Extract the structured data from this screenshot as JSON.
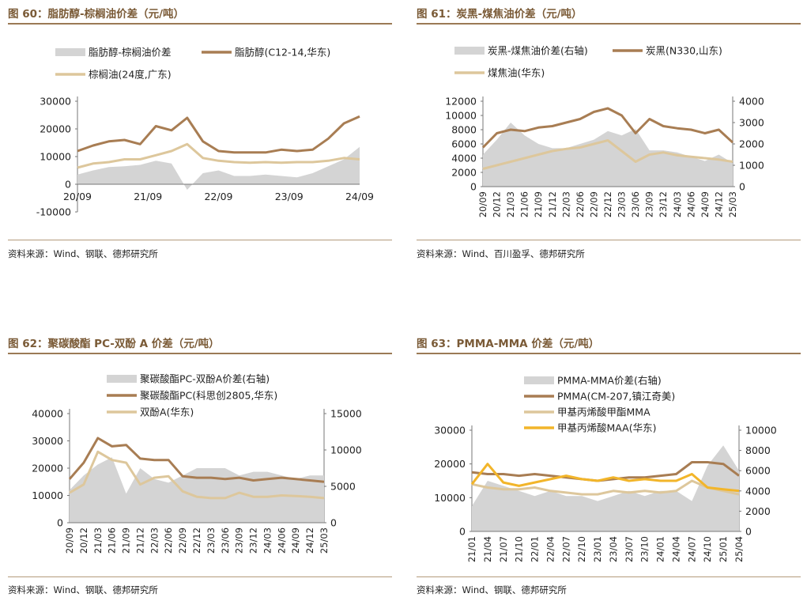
{
  "panels": [
    {
      "title": "图 60：脂肪醇-棕榈油价差（元/吨）",
      "source": "资料来源：Wind、钢联、德邦研究所"
    },
    {
      "title": "图 61：炭黑-煤焦油价差（元/吨）",
      "source": "资料来源：Wind、百川盈孚、德邦研究所"
    },
    {
      "title": "图 62：聚碳酸酯 PC-双酚 A 价差（元/吨）",
      "source": "资料来源：Wind、钢联、德邦研究所"
    },
    {
      "title": "图 63：PMMA-MMA 价差（元/吨）",
      "source": "资料来源：Wind、钢联、德邦研究所"
    }
  ],
  "colors": {
    "spread": "#d4d4d4",
    "product": "#a87d53",
    "feedstock": "#ddc79c",
    "maa": "#f2b52a"
  },
  "chart_data": [
    {
      "type": "line",
      "title": "",
      "xlabel": "",
      "ylabel": "",
      "ylim": [
        -10000,
        30000
      ],
      "yticks": [
        -10000,
        0,
        10000,
        20000,
        30000
      ],
      "tick_labels": [
        "20/09",
        "21/09",
        "22/09",
        "23/09",
        "24/09"
      ],
      "x": [
        "20/09",
        "20/12",
        "21/03",
        "21/06",
        "21/09",
        "21/12",
        "22/03",
        "22/06",
        "22/09",
        "22/12",
        "23/03",
        "23/06",
        "23/09",
        "23/12",
        "24/03",
        "24/06",
        "24/09",
        "24/12",
        "25/03"
      ],
      "legend": "top",
      "series": [
        {
          "name": "脂肪醇-棕榈油价差",
          "type": "area",
          "axis": "left",
          "values": [
            3500,
            5000,
            6200,
            6500,
            7000,
            8500,
            7500,
            -2000,
            4000,
            5000,
            3000,
            3000,
            3500,
            3000,
            2500,
            4000,
            6500,
            9000,
            13500
          ]
        },
        {
          "name": "脂肪醇(C12-14,华东)",
          "type": "line",
          "axis": "left",
          "values": [
            12000,
            14000,
            15500,
            16000,
            14500,
            21000,
            19500,
            24000,
            15500,
            12000,
            11500,
            11500,
            11500,
            12500,
            12000,
            12500,
            16500,
            22000,
            24500
          ]
        },
        {
          "name": "棕榈油(24度,广东)",
          "type": "line",
          "axis": "left",
          "values": [
            6000,
            7500,
            8000,
            9000,
            9000,
            10500,
            12000,
            14500,
            9500,
            8500,
            8000,
            7800,
            8000,
            7800,
            8000,
            8000,
            8500,
            9500,
            9000
          ]
        }
      ]
    },
    {
      "type": "line",
      "title": "",
      "xlabel": "",
      "ylabel": "",
      "ylim": [
        0,
        12000
      ],
      "ylim_right": [
        0,
        4000
      ],
      "yticks": [
        0,
        2000,
        4000,
        6000,
        8000,
        10000,
        12000
      ],
      "yticks_right": [
        0,
        1000,
        2000,
        3000,
        4000
      ],
      "tick_labels": [
        "20/09",
        "20/12",
        "21/03",
        "21/06",
        "21/09",
        "21/12",
        "22/03",
        "22/06",
        "22/09",
        "22/12",
        "23/03",
        "23/06",
        "23/09",
        "23/12",
        "24/03",
        "24/06",
        "24/09",
        "24/12",
        "25/03"
      ],
      "x": [
        "20/09",
        "20/12",
        "21/03",
        "21/06",
        "21/09",
        "21/12",
        "22/03",
        "22/06",
        "22/09",
        "22/12",
        "23/03",
        "23/06",
        "23/09",
        "23/12",
        "24/03",
        "24/06",
        "24/09",
        "24/12",
        "25/03"
      ],
      "legend": "top",
      "series": [
        {
          "name": "炭黑-煤焦油价差(右轴)",
          "type": "area",
          "axis": "right",
          "values": [
            1500,
            2200,
            3000,
            2400,
            2000,
            1800,
            1800,
            2000,
            2200,
            2600,
            2400,
            2700,
            1700,
            1700,
            1600,
            1400,
            1200,
            1500,
            1100
          ]
        },
        {
          "name": "炭黑(N330,山东)",
          "type": "line",
          "axis": "left",
          "values": [
            5500,
            7500,
            8000,
            7800,
            8300,
            8500,
            9000,
            9500,
            10500,
            11000,
            10000,
            7500,
            9500,
            8500,
            8200,
            8000,
            7500,
            8000,
            6200
          ]
        },
        {
          "name": "煤焦油(华东)",
          "type": "line",
          "axis": "left",
          "values": [
            2500,
            3000,
            3500,
            4000,
            4500,
            5000,
            5300,
            5500,
            6000,
            6500,
            5000,
            3500,
            4500,
            4800,
            4400,
            4200,
            4000,
            3800,
            3500
          ]
        }
      ]
    },
    {
      "type": "line",
      "title": "",
      "xlabel": "",
      "ylabel": "",
      "ylim": [
        0,
        40000
      ],
      "ylim_right": [
        0,
        15000
      ],
      "yticks": [
        0,
        10000,
        20000,
        30000,
        40000
      ],
      "yticks_right": [
        0,
        5000,
        10000,
        15000
      ],
      "tick_labels": [
        "20/09",
        "20/12",
        "21/03",
        "21/06",
        "21/09",
        "21/12",
        "22/03",
        "22/06",
        "22/09",
        "22/12",
        "23/03",
        "23/06",
        "23/09",
        "23/12",
        "24/03",
        "24/06",
        "24/09",
        "24/12",
        "25/03"
      ],
      "x": [
        "20/09",
        "20/12",
        "21/03",
        "21/06",
        "21/09",
        "21/12",
        "22/03",
        "22/06",
        "22/09",
        "22/12",
        "23/03",
        "23/06",
        "23/09",
        "23/12",
        "24/03",
        "24/06",
        "24/09",
        "24/12",
        "25/03"
      ],
      "legend": "top",
      "series": [
        {
          "name": "聚碳酸酯PC-双酚A价差(右轴)",
          "type": "area",
          "axis": "right",
          "values": [
            4500,
            6500,
            8000,
            9000,
            4000,
            7500,
            6000,
            5500,
            6500,
            7500,
            7500,
            7500,
            6500,
            7000,
            7000,
            6500,
            6000,
            6500,
            6500
          ]
        },
        {
          "name": "聚碳酸酯PC(科思创2805,华东)",
          "type": "line",
          "axis": "left",
          "values": [
            16000,
            22000,
            31000,
            28000,
            28500,
            23500,
            23000,
            23000,
            17000,
            16500,
            16500,
            16000,
            16500,
            15500,
            16000,
            16500,
            16000,
            15500,
            15000
          ]
        },
        {
          "name": "双酚A(华东)",
          "type": "line",
          "axis": "left",
          "values": [
            11000,
            14000,
            26000,
            23000,
            22000,
            14000,
            16500,
            17000,
            11500,
            9500,
            9000,
            9000,
            11000,
            9500,
            9500,
            10000,
            9800,
            9500,
            9000
          ]
        }
      ]
    },
    {
      "type": "line",
      "title": "",
      "xlabel": "",
      "ylabel": "",
      "ylim": [
        0,
        30000
      ],
      "ylim_right": [
        0,
        10000
      ],
      "yticks": [
        0,
        10000,
        20000,
        30000
      ],
      "yticks_right": [
        0,
        2000,
        4000,
        6000,
        8000,
        10000
      ],
      "tick_labels": [
        "21/01",
        "21/04",
        "21/07",
        "21/10",
        "22/01",
        "22/04",
        "22/07",
        "22/10",
        "23/01",
        "23/04",
        "23/07",
        "23/10",
        "24/01",
        "24/04",
        "24/07",
        "24/10",
        "25/01",
        "25/04"
      ],
      "x": [
        "21/01",
        "21/04",
        "21/07",
        "21/10",
        "22/01",
        "22/04",
        "22/07",
        "22/10",
        "23/01",
        "23/04",
        "23/07",
        "23/10",
        "24/01",
        "24/04",
        "24/07",
        "24/10",
        "25/01",
        "25/04"
      ],
      "legend": "top",
      "series": [
        {
          "name": "PMMA-MMA价差(右轴)",
          "type": "area",
          "axis": "right",
          "values": [
            2500,
            5000,
            4500,
            4000,
            3500,
            4000,
            3500,
            3500,
            3000,
            3500,
            4000,
            3500,
            4000,
            4000,
            3000,
            6500,
            8500,
            6000
          ]
        },
        {
          "name": "PMMA(CM-207,镇江奇美)",
          "type": "line",
          "axis": "left",
          "values": [
            17500,
            17000,
            17000,
            16500,
            17000,
            16500,
            16000,
            15500,
            15000,
            15500,
            16000,
            16000,
            16500,
            17000,
            20500,
            20500,
            20000,
            16500
          ]
        },
        {
          "name": "甲基丙烯酸甲酯MMA",
          "type": "line",
          "axis": "left",
          "values": [
            14000,
            13000,
            12500,
            12500,
            13000,
            12000,
            11500,
            11000,
            11000,
            12000,
            11500,
            12000,
            11500,
            12000,
            15000,
            13000,
            12000,
            11000
          ]
        },
        {
          "name": "甲基丙烯酸MAA(华东)",
          "type": "line",
          "axis": "left",
          "values": [
            14000,
            20000,
            14500,
            13500,
            14500,
            15500,
            16500,
            15500,
            15000,
            16000,
            15000,
            15500,
            15000,
            15000,
            17000,
            13000,
            12500,
            12000
          ]
        }
      ]
    }
  ]
}
